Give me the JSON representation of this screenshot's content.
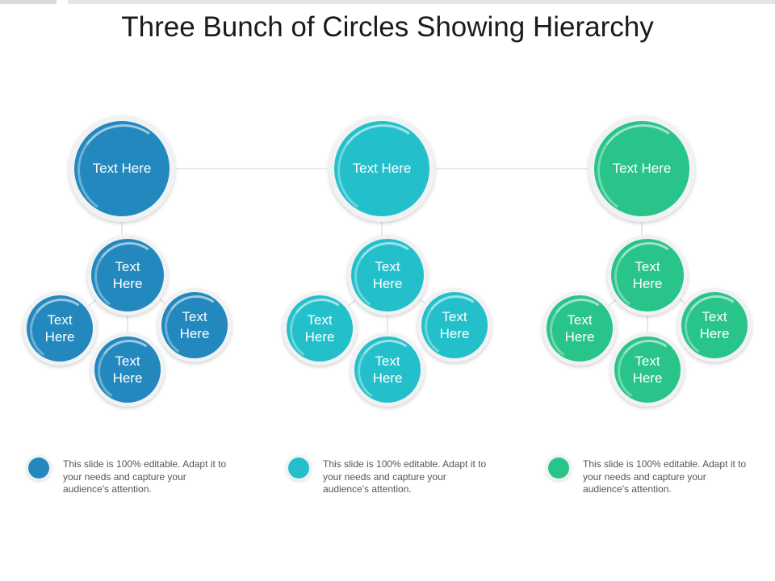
{
  "title": "Three Bunch of Circles Showing Hierarchy",
  "colors": {
    "blue": "#2388bd",
    "teal": "#23c0cb",
    "green": "#28c489"
  },
  "groups": [
    {
      "color": "#2388bd",
      "top_label": "Text Here",
      "center_label": "Text\nHere",
      "left_label": "Text\nHere",
      "right_label": "Text\nHere",
      "bottom_label": "Text\nHere",
      "legend_text": "This slide is 100% editable. Adapt it to your needs and capture your audience's attention."
    },
    {
      "color": "#23c0cb",
      "top_label": "Text Here",
      "center_label": "Text\nHere",
      "left_label": "Text\nHere",
      "right_label": "Text\nHere",
      "bottom_label": "Text\nHere",
      "legend_text": "This slide is 100% editable. Adapt it to your needs and capture your audience's attention."
    },
    {
      "color": "#28c489",
      "top_label": "Text Here",
      "center_label": "Text\nHere",
      "left_label": "Text\nHere",
      "right_label": "Text\nHere",
      "bottom_label": "Text\nHere",
      "legend_text": "This slide is 100% editable. Adapt it to your needs and capture your audience's attention."
    }
  ]
}
